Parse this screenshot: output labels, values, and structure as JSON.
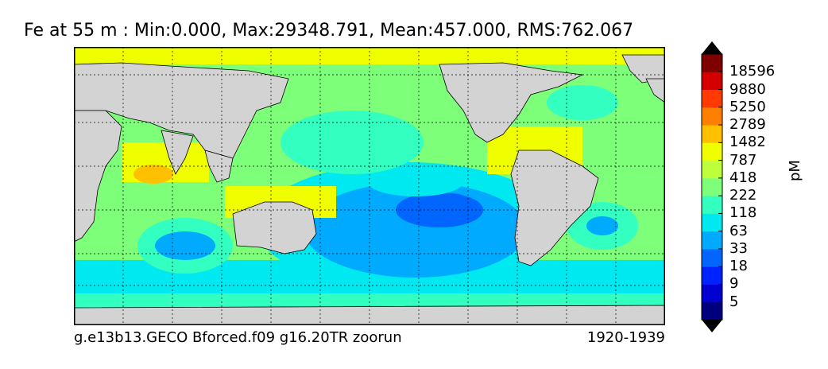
{
  "title": "Fe at 55 m : Min:0.000, Max:29348.791, Mean:457.000, RMS:762.067",
  "footer": {
    "run_name": "g.e13b13.GECO Bforced.f09 g16.20TR zoorun",
    "period": "1920-1939"
  },
  "colorbar": {
    "units": "pM",
    "levels": [
      "5",
      "9",
      "18",
      "33",
      "63",
      "118",
      "222",
      "418",
      "787",
      "1482",
      "2789",
      "5250",
      "9880",
      "18596"
    ],
    "colors": [
      "#00007f",
      "#0000d0",
      "#0022ff",
      "#0066ff",
      "#00aaff",
      "#00e8f0",
      "#33ffc0",
      "#7dff7a",
      "#bdff3a",
      "#f0ff00",
      "#ffc000",
      "#ff7f00",
      "#ff3a00",
      "#d40000",
      "#7f0000"
    ]
  },
  "map": {
    "land_color": "#d3d3d3",
    "gridlines": "dotted"
  }
}
